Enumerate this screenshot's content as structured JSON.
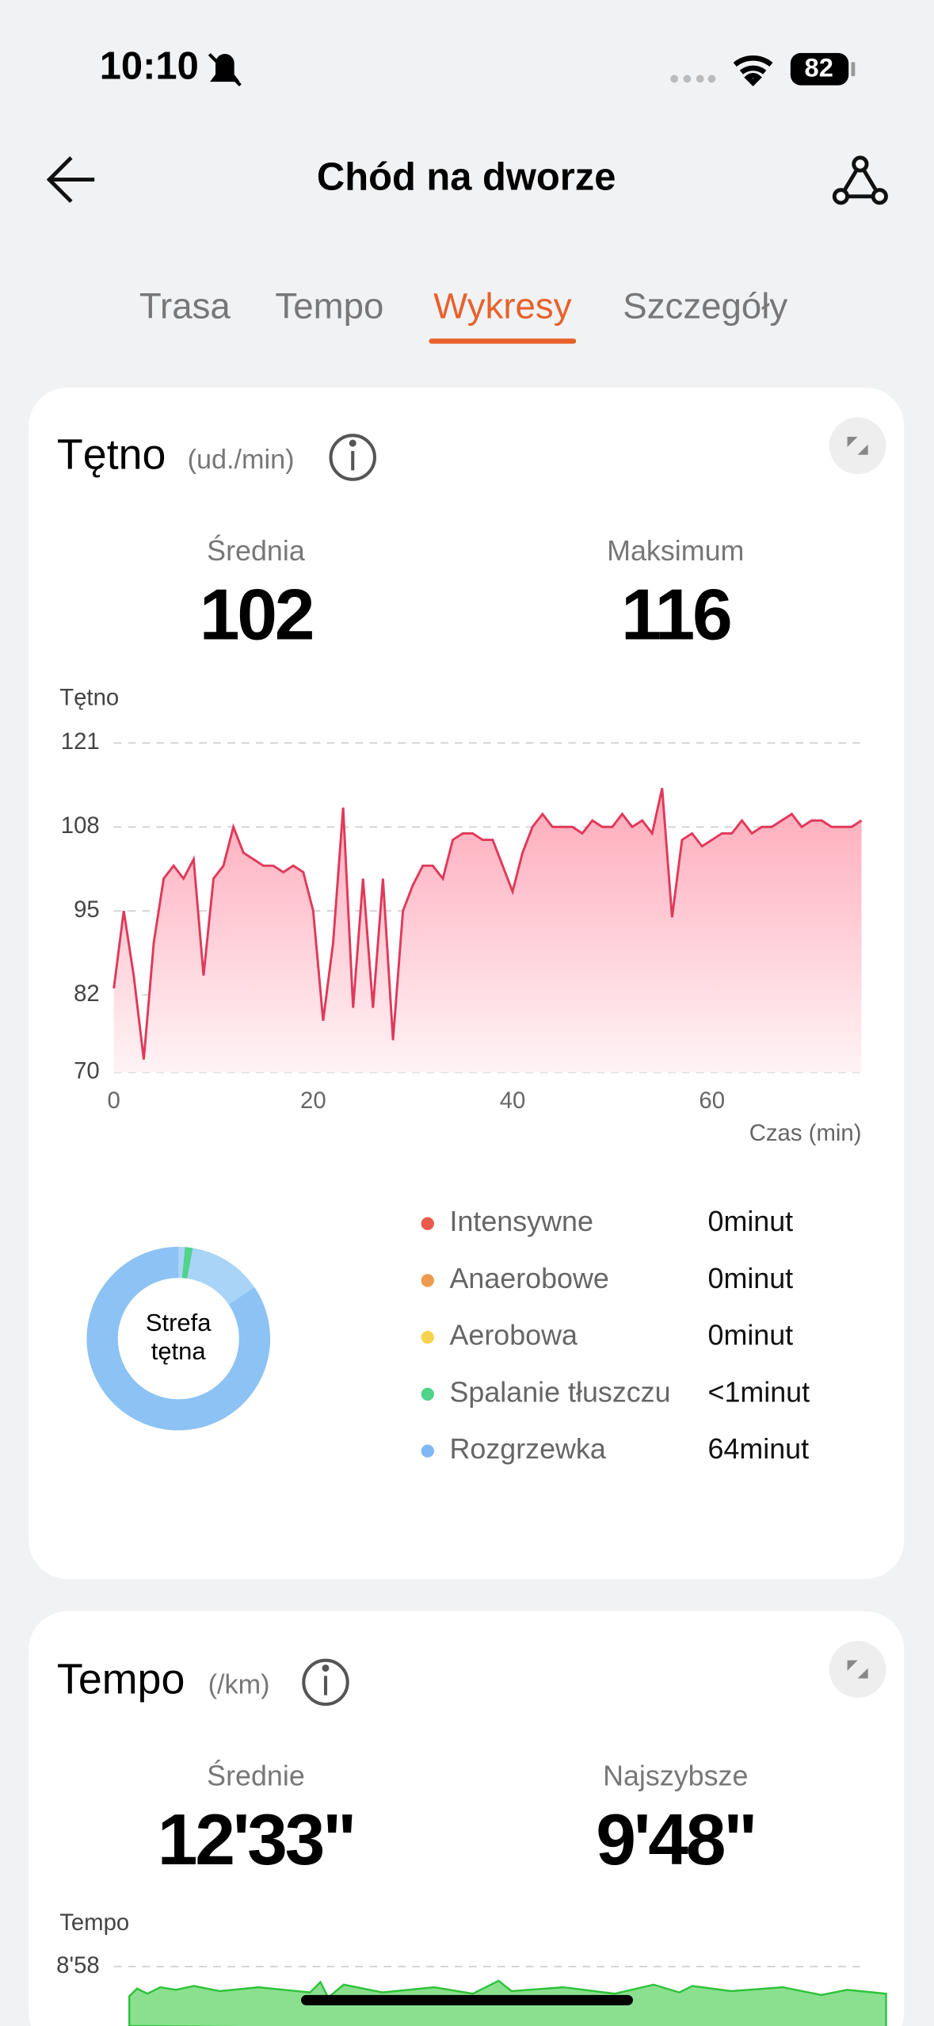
{
  "status": {
    "time": "10:10",
    "battery": "82"
  },
  "header": {
    "title": "Chód na dworze"
  },
  "tabs": [
    "Trasa",
    "Tempo",
    "Wykresy",
    "Szczegóły"
  ],
  "heart": {
    "title": "Tętno",
    "unit": "(ud./min)",
    "stats": [
      {
        "label": "Średnia",
        "value": "102"
      },
      {
        "label": "Maksimum",
        "value": "116"
      }
    ],
    "chart_data": {
      "type": "area",
      "y_label": "Tętno",
      "x_label": "Czas (min)",
      "color": "#e0395a",
      "x": [
        0,
        1,
        2,
        3,
        4,
        5,
        6,
        7,
        8,
        9,
        10,
        11,
        12,
        13,
        14,
        15,
        16,
        17,
        18,
        19,
        20,
        21,
        22,
        23,
        24,
        25,
        26,
        27,
        28,
        29,
        30,
        31,
        32,
        33,
        34,
        35,
        36,
        37,
        38,
        39,
        40,
        41,
        42,
        43,
        44,
        45,
        46,
        47,
        48,
        49,
        50,
        51,
        52,
        53,
        54,
        55,
        56,
        57,
        58,
        59,
        60,
        61,
        62,
        63,
        64,
        65,
        66,
        67,
        68,
        69,
        70,
        71,
        72,
        73,
        74,
        75
      ],
      "values": [
        83,
        95,
        85,
        72,
        90,
        100,
        102,
        100,
        103,
        85,
        100,
        102,
        108,
        104,
        103,
        102,
        102,
        101,
        102,
        101,
        95,
        78,
        90,
        111,
        80,
        100,
        80,
        100,
        75,
        95,
        99,
        102,
        102,
        100,
        106,
        107,
        107,
        106,
        106,
        102,
        98,
        104,
        108,
        110,
        108,
        108,
        108,
        107,
        109,
        108,
        108,
        110,
        108,
        109,
        107,
        114,
        94,
        106,
        107,
        105,
        106,
        107,
        107,
        109,
        107,
        108,
        108,
        109,
        110,
        108,
        109,
        109,
        108,
        108,
        108,
        109
      ],
      "xlim": [
        0,
        75
      ],
      "xticks": [
        0,
        20,
        40,
        60
      ],
      "ylim": [
        70,
        121
      ],
      "yticks": [
        70,
        82,
        95,
        108,
        121
      ],
      "grid": true
    },
    "zones": {
      "center_label": [
        "Strefa",
        "tętna"
      ],
      "items": [
        {
          "name": "Intensywne",
          "color": "#ec5a4b",
          "value": "0minut"
        },
        {
          "name": "Anaerobowe",
          "color": "#ee9a4c",
          "value": "0minut"
        },
        {
          "name": "Aerobowa",
          "color": "#f6d34f",
          "value": "0minut"
        },
        {
          "name": "Spalanie tłuszczu",
          "color": "#4fd48a",
          "value": "<1minut"
        },
        {
          "name": "Rozgrzewka",
          "color": "#7fb8f2",
          "value": "64minut"
        }
      ]
    }
  },
  "pace": {
    "title": "Tempo",
    "unit": "(/km)",
    "stats": [
      {
        "label": "Średnie",
        "value": "12'33\""
      },
      {
        "label": "Najszybsze",
        "value": "9'48\""
      }
    ],
    "y_label": "Tempo",
    "top_tick": "8'58"
  }
}
